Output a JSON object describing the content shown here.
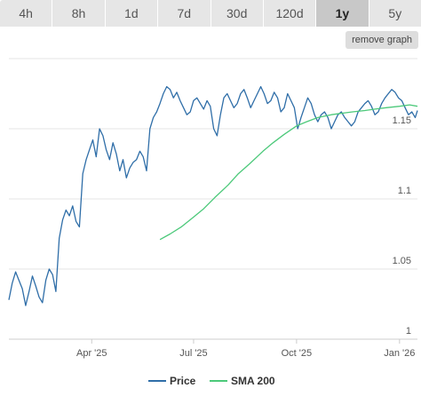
{
  "tabs": [
    {
      "label": "4h",
      "active": false
    },
    {
      "label": "8h",
      "active": false
    },
    {
      "label": "1d",
      "active": false
    },
    {
      "label": "7d",
      "active": false
    },
    {
      "label": "30d",
      "active": false
    },
    {
      "label": "120d",
      "active": false
    },
    {
      "label": "1y",
      "active": true
    },
    {
      "label": "5y",
      "active": false
    }
  ],
  "remove_graph_label": "remove graph",
  "colors": {
    "price": "#2f6ea8",
    "sma": "#4cc97a",
    "grid": "#e6e6e6"
  },
  "chart_data": {
    "type": "line",
    "title": "",
    "xlabel": "",
    "ylabel": "",
    "ylim": [
      1.0,
      1.2
    ],
    "yticks": [
      {
        "value": 1.0,
        "label": "1"
      },
      {
        "value": 1.05,
        "label": "1.05"
      },
      {
        "value": 1.1,
        "label": "1.1"
      },
      {
        "value": 1.15,
        "label": "1.15"
      }
    ],
    "xlim": [
      "2025-01-17",
      "2026-01-17"
    ],
    "xticks": [
      {
        "value": "2025-04-01",
        "label": "Apr '25"
      },
      {
        "value": "2025-07-01",
        "label": "Jul '25"
      },
      {
        "value": "2025-10-01",
        "label": "Oct '25"
      },
      {
        "value": "2026-01-01",
        "label": "Jan '26"
      }
    ],
    "grid": true,
    "legend": "bottom-center",
    "series": [
      {
        "name": "Price",
        "x": [
          "2025-01-17",
          "2025-01-20",
          "2025-01-23",
          "2025-01-26",
          "2025-01-29",
          "2025-02-01",
          "2025-02-04",
          "2025-02-07",
          "2025-02-10",
          "2025-02-13",
          "2025-02-16",
          "2025-02-19",
          "2025-02-22",
          "2025-02-25",
          "2025-02-28",
          "2025-03-03",
          "2025-03-06",
          "2025-03-09",
          "2025-03-12",
          "2025-03-15",
          "2025-03-18",
          "2025-03-21",
          "2025-03-24",
          "2025-03-27",
          "2025-03-30",
          "2025-04-02",
          "2025-04-05",
          "2025-04-08",
          "2025-04-11",
          "2025-04-14",
          "2025-04-17",
          "2025-04-20",
          "2025-04-23",
          "2025-04-26",
          "2025-04-29",
          "2025-05-02",
          "2025-05-05",
          "2025-05-08",
          "2025-05-11",
          "2025-05-14",
          "2025-05-17",
          "2025-05-20",
          "2025-05-23",
          "2025-05-26",
          "2025-05-29",
          "2025-06-01",
          "2025-06-04",
          "2025-06-07",
          "2025-06-10",
          "2025-06-13",
          "2025-06-16",
          "2025-06-19",
          "2025-06-22",
          "2025-06-25",
          "2025-06-28",
          "2025-07-01",
          "2025-07-04",
          "2025-07-07",
          "2025-07-10",
          "2025-07-13",
          "2025-07-16",
          "2025-07-19",
          "2025-07-22",
          "2025-07-25",
          "2025-07-28",
          "2025-07-31",
          "2025-08-03",
          "2025-08-06",
          "2025-08-09",
          "2025-08-12",
          "2025-08-15",
          "2025-08-18",
          "2025-08-21",
          "2025-08-24",
          "2025-08-27",
          "2025-08-30",
          "2025-09-02",
          "2025-09-05",
          "2025-09-08",
          "2025-09-11",
          "2025-09-14",
          "2025-09-17",
          "2025-09-20",
          "2025-09-23",
          "2025-09-26",
          "2025-09-29",
          "2025-10-02",
          "2025-10-05",
          "2025-10-08",
          "2025-10-11",
          "2025-10-14",
          "2025-10-17",
          "2025-10-20",
          "2025-10-23",
          "2025-10-26",
          "2025-10-29",
          "2025-11-01",
          "2025-11-04",
          "2025-11-07",
          "2025-11-10",
          "2025-11-13",
          "2025-11-16",
          "2025-11-19",
          "2025-11-22",
          "2025-11-25",
          "2025-11-28",
          "2025-12-01",
          "2025-12-04",
          "2025-12-07",
          "2025-12-10",
          "2025-12-13",
          "2025-12-16",
          "2025-12-19",
          "2025-12-22",
          "2025-12-25",
          "2025-12-28",
          "2025-12-31",
          "2026-01-03",
          "2026-01-06",
          "2026-01-09",
          "2026-01-12",
          "2026-01-15",
          "2026-01-17"
        ],
        "y": [
          1.028,
          1.04,
          1.048,
          1.042,
          1.036,
          1.024,
          1.034,
          1.045,
          1.038,
          1.03,
          1.026,
          1.042,
          1.05,
          1.046,
          1.034,
          1.072,
          1.085,
          1.092,
          1.088,
          1.095,
          1.084,
          1.08,
          1.118,
          1.128,
          1.135,
          1.142,
          1.13,
          1.15,
          1.145,
          1.135,
          1.128,
          1.14,
          1.132,
          1.12,
          1.128,
          1.115,
          1.122,
          1.126,
          1.128,
          1.134,
          1.13,
          1.12,
          1.15,
          1.158,
          1.162,
          1.168,
          1.175,
          1.18,
          1.178,
          1.172,
          1.176,
          1.17,
          1.165,
          1.16,
          1.162,
          1.17,
          1.172,
          1.168,
          1.164,
          1.17,
          1.166,
          1.15,
          1.145,
          1.16,
          1.172,
          1.175,
          1.17,
          1.165,
          1.168,
          1.175,
          1.178,
          1.172,
          1.165,
          1.17,
          1.175,
          1.18,
          1.175,
          1.168,
          1.17,
          1.176,
          1.172,
          1.162,
          1.165,
          1.175,
          1.17,
          1.165,
          1.15,
          1.158,
          1.165,
          1.172,
          1.168,
          1.16,
          1.155,
          1.16,
          1.162,
          1.158,
          1.15,
          1.155,
          1.16,
          1.162,
          1.158,
          1.155,
          1.152,
          1.155,
          1.162,
          1.165,
          1.168,
          1.17,
          1.166,
          1.16,
          1.162,
          1.168,
          1.172,
          1.175,
          1.178,
          1.176,
          1.172,
          1.17,
          1.165,
          1.16,
          1.162,
          1.158,
          1.163
        ]
      },
      {
        "name": "SMA 200",
        "x": [
          "2025-06-01",
          "2025-06-10",
          "2025-06-20",
          "2025-07-01",
          "2025-07-10",
          "2025-07-20",
          "2025-08-01",
          "2025-08-10",
          "2025-08-20",
          "2025-09-01",
          "2025-09-10",
          "2025-09-20",
          "2025-10-01",
          "2025-10-10",
          "2025-10-20",
          "2025-11-01",
          "2025-11-10",
          "2025-11-20",
          "2025-12-01",
          "2025-12-10",
          "2025-12-20",
          "2026-01-01",
          "2026-01-10",
          "2026-01-17"
        ],
        "y": [
          1.071,
          1.075,
          1.08,
          1.087,
          1.093,
          1.101,
          1.11,
          1.118,
          1.125,
          1.134,
          1.14,
          1.146,
          1.152,
          1.155,
          1.158,
          1.16,
          1.161,
          1.162,
          1.163,
          1.164,
          1.165,
          1.166,
          1.167,
          1.166
        ]
      }
    ]
  }
}
